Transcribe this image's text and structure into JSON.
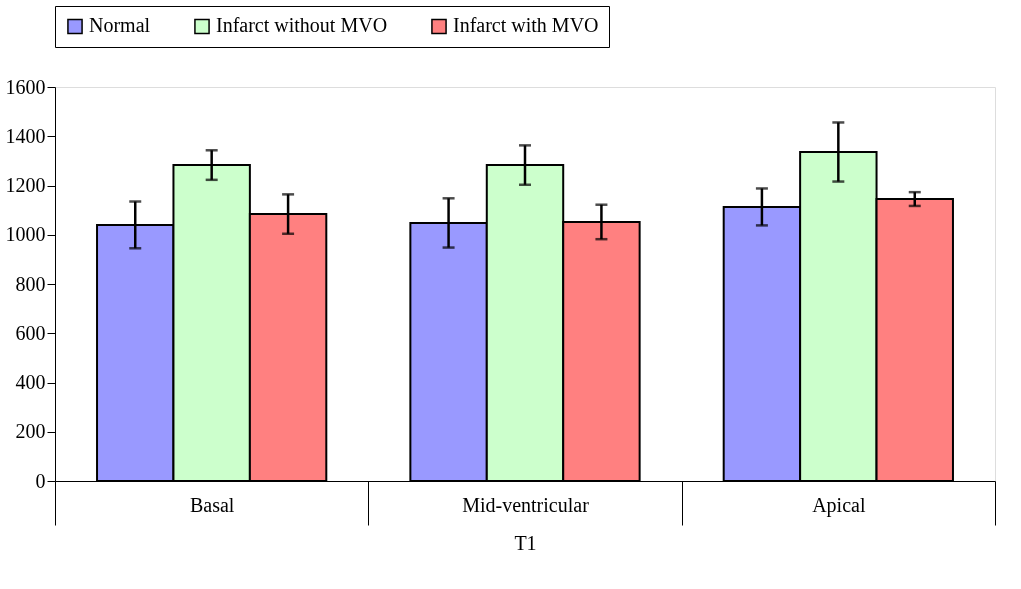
{
  "chart_data": {
    "type": "bar",
    "xlabel": "T1",
    "categories": [
      "Basal",
      "Mid-ventricular",
      "Apical"
    ],
    "series": [
      {
        "name": "Normal",
        "color": "#9999ff",
        "values": [
          1040,
          1048,
          1113
        ],
        "errors": [
          95,
          100,
          75
        ]
      },
      {
        "name": "Infarct without MVO",
        "color": "#ccffcc",
        "values": [
          1283,
          1283,
          1336
        ],
        "errors": [
          60,
          80,
          120
        ]
      },
      {
        "name": "Infarct with MVO",
        "color": "#ff8080",
        "values": [
          1084,
          1052,
          1145
        ],
        "errors": [
          80,
          70,
          28
        ]
      }
    ],
    "ylim": [
      0,
      1600
    ],
    "yticks": [
      0,
      200,
      400,
      600,
      800,
      1000,
      1200,
      1400,
      1600
    ],
    "grid": false,
    "legend": "top"
  }
}
